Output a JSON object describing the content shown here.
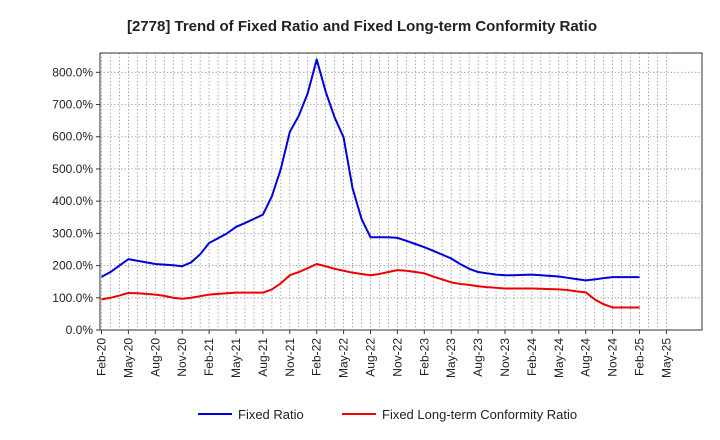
{
  "chart_data": {
    "type": "line",
    "title": "[2778]  Trend of Fixed Ratio and Fixed Long-term Conformity Ratio",
    "xlabel": "",
    "ylabel": "",
    "ylim": [
      0,
      860
    ],
    "y_ticks": [
      0,
      100,
      200,
      300,
      400,
      500,
      600,
      700,
      800
    ],
    "y_tick_labels": [
      "0.0%",
      "100.0%",
      "200.0%",
      "300.0%",
      "400.0%",
      "500.0%",
      "600.0%",
      "700.0%",
      "800.0%"
    ],
    "x_tick_labels": [
      "Feb-20",
      "May-20",
      "Aug-20",
      "Nov-20",
      "Feb-21",
      "May-21",
      "Aug-21",
      "Nov-21",
      "Feb-22",
      "May-22",
      "Aug-22",
      "Nov-22",
      "Feb-23",
      "May-23",
      "Aug-23",
      "Nov-23",
      "Feb-24",
      "May-24",
      "Aug-24",
      "Nov-24",
      "Feb-25",
      "May-25"
    ],
    "grid": true,
    "legend_position": "bottom",
    "x": [
      "Feb-20",
      "Mar-20",
      "Apr-20",
      "May-20",
      "Jun-20",
      "Jul-20",
      "Aug-20",
      "Sep-20",
      "Oct-20",
      "Nov-20",
      "Dec-20",
      "Jan-21",
      "Feb-21",
      "Mar-21",
      "Apr-21",
      "May-21",
      "Jun-21",
      "Jul-21",
      "Aug-21",
      "Sep-21",
      "Oct-21",
      "Nov-21",
      "Dec-21",
      "Jan-22",
      "Feb-22",
      "Mar-22",
      "Apr-22",
      "May-22",
      "Jun-22",
      "Jul-22",
      "Aug-22",
      "Sep-22",
      "Oct-22",
      "Nov-22",
      "Dec-22",
      "Jan-23",
      "Feb-23",
      "Mar-23",
      "Apr-23",
      "May-23",
      "Jun-23",
      "Jul-23",
      "Aug-23",
      "Sep-23",
      "Oct-23",
      "Nov-23",
      "Dec-23",
      "Jan-24",
      "Feb-24",
      "Mar-24",
      "Apr-24",
      "May-24",
      "Jun-24",
      "Jul-24",
      "Aug-24",
      "Sep-24",
      "Oct-24",
      "Nov-24",
      "Dec-24",
      "Jan-25",
      "Feb-25"
    ],
    "series": [
      {
        "name": "Fixed Ratio",
        "color": "#0000dd",
        "values": [
          165,
          180,
          200,
          220,
          215,
          210,
          205,
          203,
          201,
          198,
          210,
          235,
          270,
          285,
          300,
          320,
          332,
          345,
          358,
          415,
          500,
          615,
          665,
          735,
          840,
          740,
          660,
          598,
          440,
          345,
          288,
          288,
          288,
          286,
          277,
          267,
          257,
          246,
          234,
          222,
          205,
          190,
          180,
          176,
          172,
          170,
          170,
          171,
          172,
          170,
          168,
          166,
          162,
          158,
          154,
          157,
          161,
          164,
          164,
          164,
          164
        ]
      },
      {
        "name": "Fixed Long-term Conformity Ratio",
        "color": "#ee0000",
        "values": [
          95,
          100,
          107,
          115,
          114,
          112,
          110,
          106,
          100,
          97,
          100,
          105,
          110,
          112,
          114,
          116,
          116,
          116,
          116,
          126,
          145,
          170,
          180,
          192,
          205,
          198,
          190,
          184,
          178,
          174,
          170,
          174,
          180,
          186,
          184,
          180,
          176,
          166,
          157,
          148,
          143,
          140,
          136,
          133,
          131,
          129,
          129,
          129,
          129,
          128,
          127,
          126,
          124,
          120,
          117,
          95,
          80,
          70,
          70,
          70,
          70
        ]
      }
    ]
  }
}
